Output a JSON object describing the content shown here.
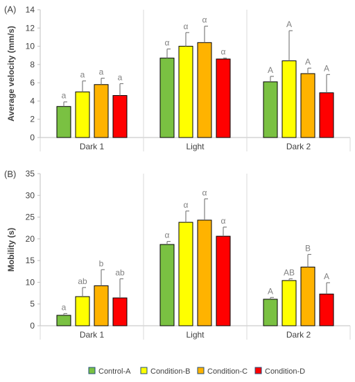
{
  "chart_data": [
    {
      "type": "bar",
      "panel_label": "(A)",
      "ylabel": "Average velocity (mm/s)",
      "ylim": [
        0,
        14
      ],
      "yticks": [
        0,
        2,
        4,
        6,
        8,
        10,
        12,
        14
      ],
      "categories": [
        "Dark 1",
        "Light",
        "Dark 2"
      ],
      "series": [
        {
          "name": "Control-A",
          "values": [
            3.4,
            8.7,
            6.1
          ],
          "errors": [
            0.5,
            1.0,
            0.6
          ],
          "labels": [
            "a",
            "α",
            "A"
          ]
        },
        {
          "name": "Condition-B",
          "values": [
            5.0,
            10.0,
            8.4
          ],
          "errors": [
            1.2,
            1.5,
            3.3
          ],
          "labels": [
            "a",
            "α",
            "A"
          ]
        },
        {
          "name": "Condition-C",
          "values": [
            5.8,
            10.4,
            7.0
          ],
          "errors": [
            0.7,
            1.8,
            0.6
          ],
          "labels": [
            "a",
            "α",
            "A"
          ]
        },
        {
          "name": "Condition-D",
          "values": [
            4.6,
            8.6,
            4.9
          ],
          "errors": [
            1.3,
            0.1,
            2.0
          ],
          "labels": [
            "a",
            "α",
            "A"
          ]
        }
      ]
    },
    {
      "type": "bar",
      "panel_label": "(B)",
      "ylabel": "Mobility (s)",
      "ylim": [
        0,
        35
      ],
      "yticks": [
        0,
        5,
        10,
        15,
        20,
        25,
        30,
        35
      ],
      "categories": [
        "Dark 1",
        "Light",
        "Dark 2"
      ],
      "series": [
        {
          "name": "Control-A",
          "values": [
            2.4,
            18.7,
            6.1
          ],
          "errors": [
            0.4,
            0.7,
            0.4
          ],
          "labels": [
            "a",
            "α",
            "A"
          ]
        },
        {
          "name": "Condition-B",
          "values": [
            6.7,
            23.8,
            10.4
          ],
          "errors": [
            2.1,
            2.6,
            0.4
          ],
          "labels": [
            "ab",
            "α",
            "AB"
          ]
        },
        {
          "name": "Condition-C",
          "values": [
            9.2,
            24.3,
            13.5
          ],
          "errors": [
            3.7,
            4.9,
            2.9
          ],
          "labels": [
            "b",
            "α",
            "B"
          ]
        },
        {
          "name": "Condition-D",
          "values": [
            6.4,
            20.6,
            7.3
          ],
          "errors": [
            4.4,
            2.1,
            2.6
          ],
          "labels": [
            "ab",
            "α",
            "A"
          ]
        }
      ]
    }
  ],
  "legend": [
    {
      "name": "Control-A",
      "color": "#7ac142"
    },
    {
      "name": "Condition-B",
      "color": "#ffff00"
    },
    {
      "name": "Condition-C",
      "color": "#ffb300"
    },
    {
      "name": "Condition-D",
      "color": "#ff0000"
    }
  ],
  "colors": {
    "axis": "#bfbfbf",
    "divider": "#d9d9d9",
    "bar_outline": "#000000",
    "error_bar": "#7f7f7f",
    "text": "#404040",
    "sig_text": "#808080"
  }
}
